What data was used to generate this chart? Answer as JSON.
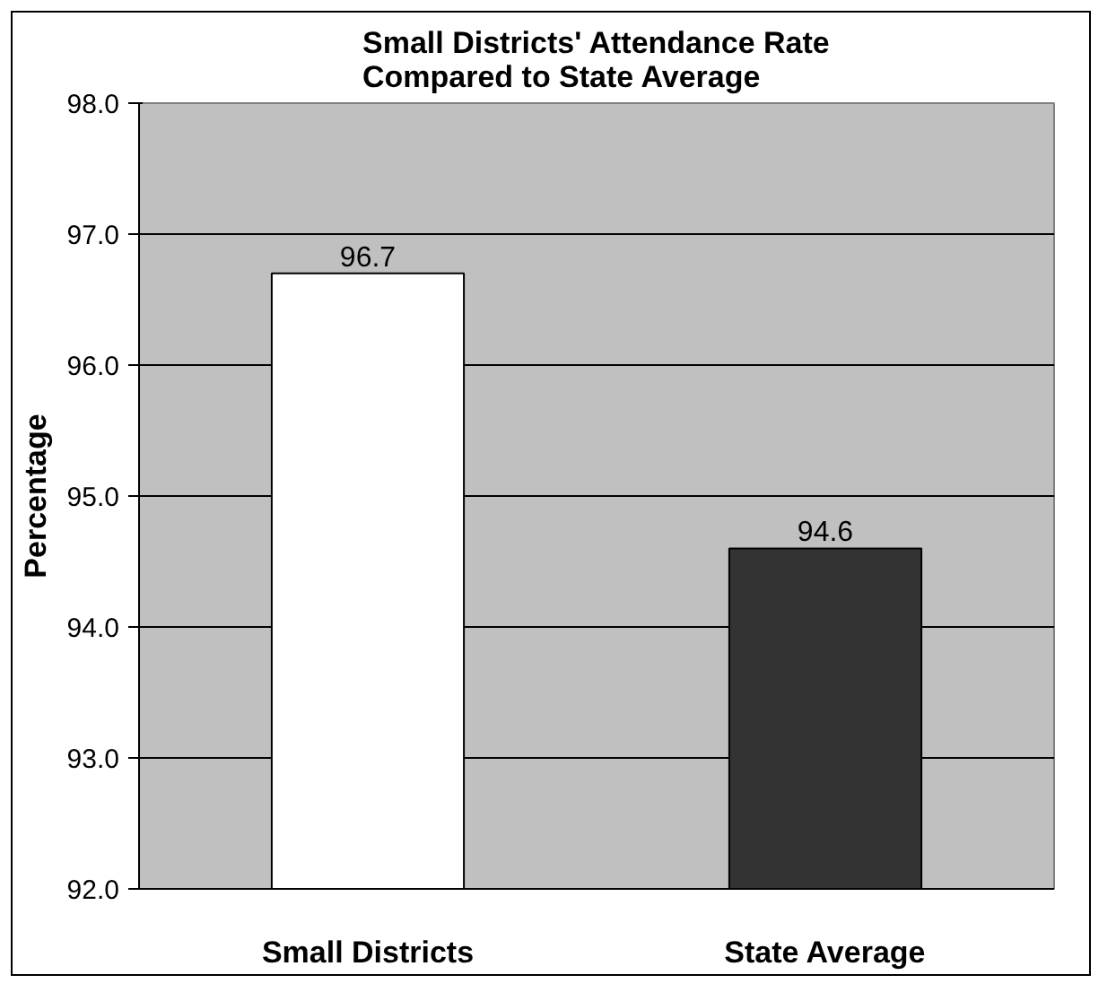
{
  "chart_data": {
    "type": "bar",
    "title": "Small Districts' Attendance Rate\nCompared to State Average",
    "ylabel": "Percentage",
    "categories": [
      "Small Districts",
      "State Average"
    ],
    "values": [
      96.7,
      94.6
    ],
    "colors": [
      "#ffffff",
      "#333333"
    ],
    "ylim": [
      92,
      98
    ],
    "yticks": [
      {
        "value": 92,
        "label": "92.0"
      },
      {
        "value": 93,
        "label": "93.0"
      },
      {
        "value": 94,
        "label": "94.0"
      },
      {
        "value": 95,
        "label": "95.0"
      },
      {
        "value": 96,
        "label": "96.0"
      },
      {
        "value": 97,
        "label": "97.0"
      },
      {
        "value": 98,
        "label": "98.0"
      }
    ],
    "grid": "y",
    "data_labels": true
  }
}
